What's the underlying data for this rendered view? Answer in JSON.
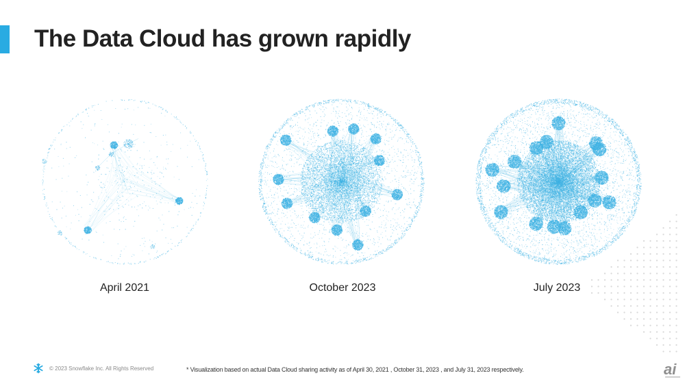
{
  "slide": {
    "title": "The Data Cloud has grown rapidly",
    "accent_color": "#29abe2"
  },
  "visualizations": [
    {
      "label": "April 2021",
      "density": 0.08,
      "spokes": 3,
      "center_fill": 0.02
    },
    {
      "label": "October 2023",
      "density": 0.6,
      "spokes": 12,
      "center_fill": 0.55
    },
    {
      "label": "July 2023",
      "density": 1.0,
      "spokes": 16,
      "center_fill": 1.0
    }
  ],
  "viz_color": "#3fb2e3",
  "footer": {
    "logo_icon": "snowflake-icon",
    "copyright": "© 2023 Snowflake Inc. All Rights Reserved",
    "footnote": "* Visualization based on actual Data Cloud sharing activity as of April 30, 2021 , October 31, 2023 , and July 31, 2023 respectively."
  },
  "watermark": {
    "icon": "ai-logo-icon",
    "text": "ai"
  }
}
